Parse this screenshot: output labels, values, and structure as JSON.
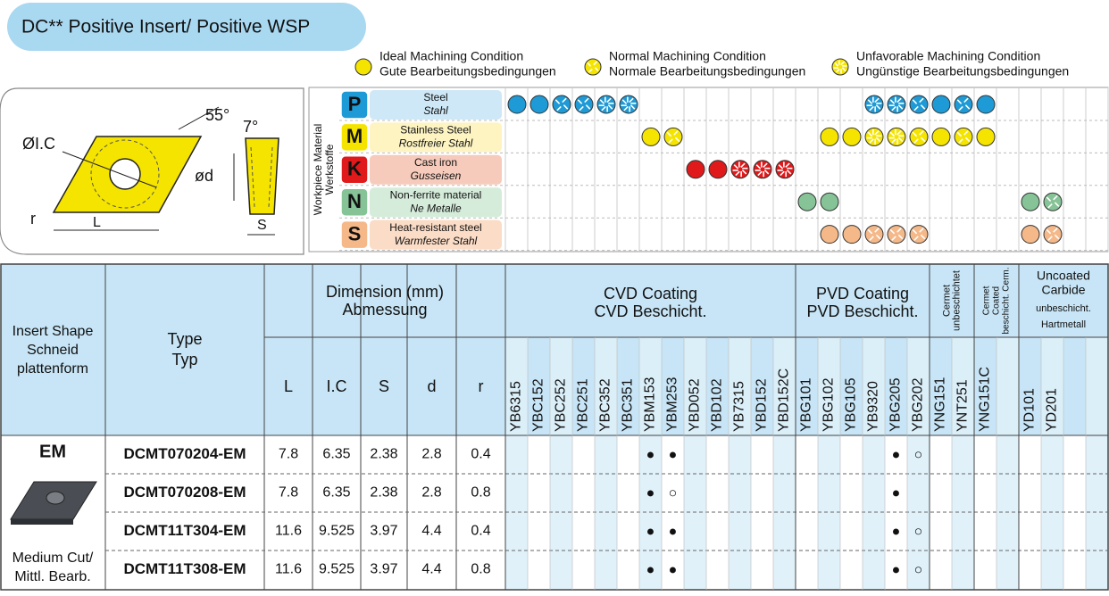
{
  "header": {
    "title": "DC** Positive Insert/ Positive WSP"
  },
  "legend": [
    {
      "en": "Ideal Machining Condition",
      "de": "Gute Bearbeitungsbedingungen"
    },
    {
      "en": "Normal Machining Condition",
      "de": "Normale Bearbeitungsbedingungen"
    },
    {
      "en": "Unfavorable Machining Condition",
      "de": "Ungünstige Bearbeitungsbedingungen"
    }
  ],
  "diagram": {
    "angle_clearance": "55°",
    "angle_relief": "7°",
    "ic": "ØI.C",
    "d": "ød",
    "r": "r",
    "l": "L",
    "s": "S"
  },
  "materials": {
    "label_en": "Workpiece Material",
    "label_de": "Werkstoffe",
    "rows": [
      {
        "letter": "P",
        "en": "Steel",
        "de": "Stahl",
        "color": "#1e9ad6",
        "bg": "#cfe8f7",
        "ratings": [
          0,
          0,
          1,
          1,
          2,
          2,
          null,
          null,
          null,
          null,
          null,
          null,
          null,
          null,
          null,
          null,
          2,
          2,
          1,
          0,
          1,
          0,
          null,
          null,
          null,
          null,
          null
        ]
      },
      {
        "letter": "M",
        "en": "Stainless Steel",
        "de": "Rostfreier Stahl",
        "color": "#f5e400",
        "bg": "#fdf4c2",
        "ratings": [
          null,
          null,
          null,
          null,
          null,
          null,
          0,
          1,
          null,
          null,
          null,
          null,
          null,
          null,
          0,
          0,
          2,
          2,
          1,
          0,
          1,
          0,
          null,
          null,
          null,
          null,
          null
        ]
      },
      {
        "letter": "K",
        "en": "Cast iron",
        "de": "Gusseisen",
        "color": "#e0191b",
        "bg": "#f6cbbb",
        "ratings": [
          null,
          null,
          null,
          null,
          null,
          null,
          null,
          null,
          0,
          0,
          2,
          2,
          2,
          null,
          null,
          null,
          null,
          null,
          null,
          null,
          null,
          null,
          null,
          null,
          null,
          null,
          null
        ]
      },
      {
        "letter": "N",
        "en": "Non-ferrite material",
        "de": "Ne Metalle",
        "color": "#86c397",
        "bg": "#d5ecda",
        "ratings": [
          null,
          null,
          null,
          null,
          null,
          null,
          null,
          null,
          null,
          null,
          null,
          null,
          null,
          0,
          0,
          null,
          null,
          null,
          null,
          null,
          null,
          null,
          null,
          0,
          1,
          null,
          null
        ]
      },
      {
        "letter": "S",
        "en": "Heat-resistant steel",
        "de": "Warmfester Stahl",
        "color": "#f5b889",
        "bg": "#fbdcc6",
        "ratings": [
          null,
          null,
          null,
          null,
          null,
          null,
          null,
          null,
          null,
          null,
          null,
          null,
          null,
          null,
          0,
          0,
          1,
          1,
          1,
          null,
          null,
          null,
          null,
          0,
          1,
          null,
          null
        ]
      }
    ]
  },
  "table": {
    "shape_header": [
      "Insert Shape",
      "Schneid",
      "plattenform"
    ],
    "type_header": [
      "Type",
      "Typ"
    ],
    "dimension_header": [
      "Dimension (mm)",
      "Abmessung"
    ],
    "dimensions": [
      "L",
      "I.C",
      "S",
      "d",
      "r"
    ],
    "grade_groups": [
      {
        "lines": [
          "CVD Coating",
          "CVD Beschicht."
        ],
        "vertical": false,
        "grades": [
          "YB6315",
          "YBC152",
          "YBC252",
          "YBC251",
          "YBC352",
          "YBC351",
          "YBM153",
          "YBM253",
          "YBD052",
          "YBD102",
          "YB7315",
          "YBD152",
          "YBD152C"
        ]
      },
      {
        "lines": [
          "PVD Coating",
          "PVD Beschicht."
        ],
        "vertical": false,
        "grades": [
          "YBG101",
          "YBG102",
          "YBG105",
          "YB9320",
          "YBG205",
          "YBG202"
        ]
      },
      {
        "lines": [
          "Cermet",
          "unbeschichtet"
        ],
        "vertical": true,
        "grades": [
          "YNG151",
          "YNT251"
        ]
      },
      {
        "lines": [
          "Cermet",
          "Coated",
          "beschicht. Cerm."
        ],
        "vertical": true,
        "grades": [
          "YNG151C",
          null
        ]
      },
      {
        "lines": [
          "Uncoated",
          "Carbide",
          "unbeschicht.",
          "Hartmetall"
        ],
        "vertical": false,
        "grades": [
          "YD101",
          "YD201",
          null,
          null
        ]
      }
    ],
    "shape": {
      "code": "EM",
      "en": "Medium Cut/",
      "de": "Mittl. Bearb."
    },
    "rows": [
      {
        "type": "DCMT070204-EM",
        "values": [
          7.8,
          6.35,
          2.38,
          2.8,
          0.4
        ],
        "marks": [
          null,
          null,
          null,
          null,
          null,
          null,
          "●",
          "●",
          null,
          null,
          null,
          null,
          null,
          null,
          null,
          null,
          null,
          "●",
          "○",
          null,
          null,
          null,
          null,
          null,
          null,
          null,
          null
        ]
      },
      {
        "type": "DCMT070208-EM",
        "values": [
          7.8,
          6.35,
          2.38,
          2.8,
          0.8
        ],
        "marks": [
          null,
          null,
          null,
          null,
          null,
          null,
          "●",
          "○",
          null,
          null,
          null,
          null,
          null,
          null,
          null,
          null,
          null,
          "●",
          null,
          null,
          null,
          null,
          null,
          null,
          null,
          null,
          null
        ]
      },
      {
        "type": "DCMT11T304-EM",
        "values": [
          11.6,
          9.525,
          3.97,
          4.4,
          0.4
        ],
        "marks": [
          null,
          null,
          null,
          null,
          null,
          null,
          "●",
          "●",
          null,
          null,
          null,
          null,
          null,
          null,
          null,
          null,
          null,
          "●",
          "○",
          null,
          null,
          null,
          null,
          null,
          null,
          null,
          null
        ]
      },
      {
        "type": "DCMT11T308-EM",
        "values": [
          11.6,
          9.525,
          3.97,
          4.4,
          0.8
        ],
        "marks": [
          null,
          null,
          null,
          null,
          null,
          null,
          "●",
          "●",
          null,
          null,
          null,
          null,
          null,
          null,
          null,
          null,
          null,
          "●",
          "○",
          null,
          null,
          null,
          null,
          null,
          null,
          null,
          null
        ]
      }
    ]
  }
}
